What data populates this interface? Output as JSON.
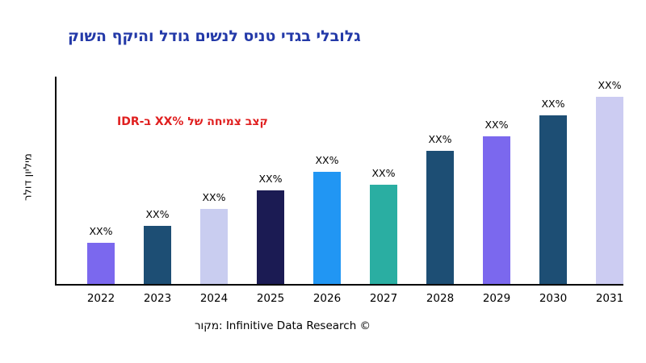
{
  "page": {
    "background": "#ffffff"
  },
  "chart_data": {
    "type": "bar",
    "title": "קושה ףקיהו לדוג םישנל סינט ידגב ילבולג",
    "title_color": "#2339a8",
    "annotation": "IDR-ב XX% לש החימצ בצק",
    "annotation_color": "#e01f1f",
    "ylabel": "רלוד ןוילימ",
    "source": "רוקמ: Infinitive Data Research ©",
    "bar_label": "XX%",
    "categories": [
      "2022",
      "2023",
      "2024",
      "2025",
      "2026",
      "2027",
      "2028",
      "2029",
      "2030",
      "2031"
    ],
    "values": [
      22,
      31,
      40,
      50,
      60,
      53,
      71,
      79,
      90,
      100
    ],
    "colors": [
      "#7b68ee",
      "#1d4e74",
      "#c9cdf0",
      "#1b1b53",
      "#2196f3",
      "#2aaea2",
      "#1d4e74",
      "#7b68ee",
      "#1d4e74",
      "#ccccf2"
    ],
    "ylim": [
      0,
      110
    ],
    "grid": false,
    "legend": "none",
    "axis_color": "#000000"
  }
}
